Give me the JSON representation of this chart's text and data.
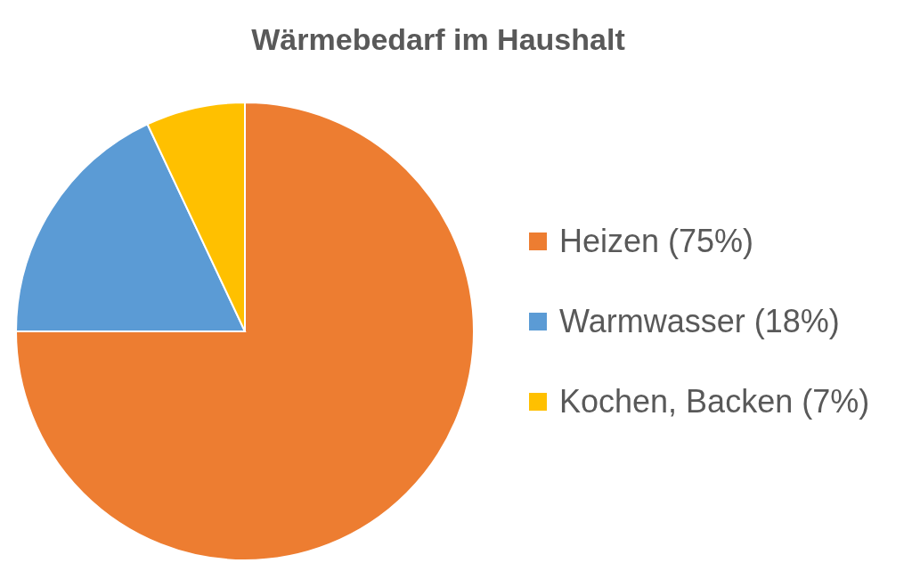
{
  "chart_data": {
    "type": "pie",
    "title": "Wärmebedarf im Haushalt",
    "categories": [
      "Heizen (75%)",
      "Warmwasser (18%)",
      "Kochen, Backen (7%)"
    ],
    "values": [
      75,
      18,
      7
    ],
    "colors": [
      "#ed7d31",
      "#5b9bd5",
      "#ffc000"
    ],
    "legend": "right"
  }
}
